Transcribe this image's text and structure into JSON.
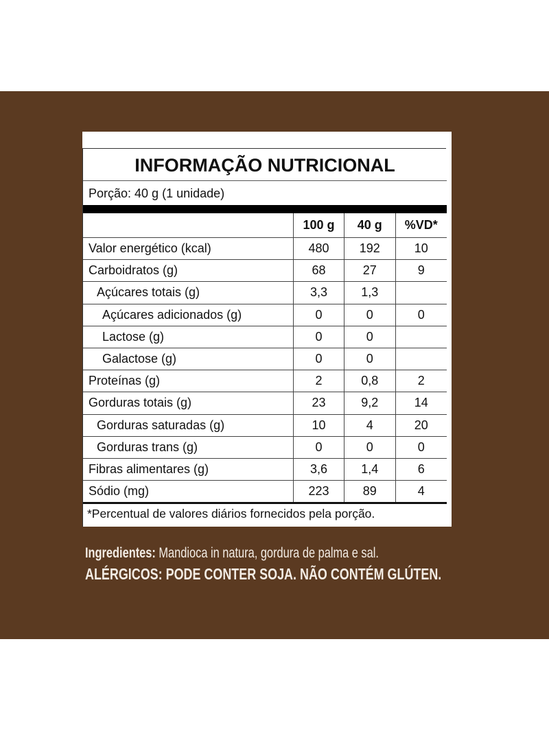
{
  "title": "INFORMAÇÃO NUTRICIONAL",
  "portion": "Porção: 40 g (1 unidade)",
  "headers": [
    "100 g",
    "40 g",
    "%VD*"
  ],
  "rows": [
    {
      "name": "Valor energético (kcal)",
      "v100": "480",
      "v40": "192",
      "vd": "10",
      "indent": 0
    },
    {
      "name": "Carboidratos (g)",
      "v100": "68",
      "v40": "27",
      "vd": "9",
      "indent": 0
    },
    {
      "name": "Açúcares totais (g)",
      "v100": "3,3",
      "v40": "1,3",
      "vd": "",
      "indent": 1
    },
    {
      "name": "Açúcares adicionados (g)",
      "v100": "0",
      "v40": "0",
      "vd": "0",
      "indent": 2
    },
    {
      "name": "Lactose (g)",
      "v100": "0",
      "v40": "0",
      "vd": "",
      "indent": 2
    },
    {
      "name": "Galactose (g)",
      "v100": "0",
      "v40": "0",
      "vd": "",
      "indent": 2
    },
    {
      "name": "Proteínas (g)",
      "v100": "2",
      "v40": "0,8",
      "vd": "2",
      "indent": 0
    },
    {
      "name": "Gorduras totais (g)",
      "v100": "23",
      "v40": "9,2",
      "vd": "14",
      "indent": 0
    },
    {
      "name": "Gorduras saturadas (g)",
      "v100": "10",
      "v40": "4",
      "vd": "20",
      "indent": 1
    },
    {
      "name": "Gorduras trans (g)",
      "v100": "0",
      "v40": "0",
      "vd": "0",
      "indent": 1
    },
    {
      "name": "Fibras alimentares (g)",
      "v100": "3,6",
      "v40": "1,4",
      "vd": "6",
      "indent": 0
    },
    {
      "name": "Sódio (mg)",
      "v100": "223",
      "v40": "89",
      "vd": "4",
      "indent": 0
    }
  ],
  "footnote": "*Percentual de valores diários fornecidos pela porção.",
  "ingredients_label": "Ingredientes:",
  "ingredients": " Mandioca in natura, gordura de palma e sal.",
  "allergens": "ALÉRGICOS: PODE CONTER SOJA. NÃO CONTÉM GLÚTEN.",
  "colors": {
    "background": "#5b3a21",
    "label": "#ffffff"
  }
}
